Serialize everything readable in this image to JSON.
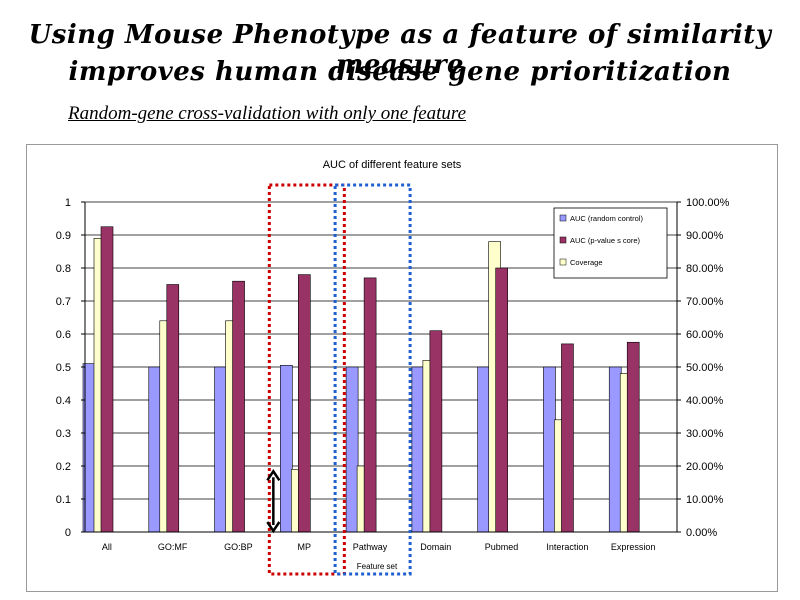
{
  "slide": {
    "title_line1": "Using Mouse Phenotype as a feature of similarity measure",
    "title_line2": "improves human disease gene prioritization",
    "subtitle": "Random-gene cross-validation with only one feature"
  },
  "colors": {
    "auc_random": "#9999ff",
    "auc_pvalue": "#993366",
    "coverage": "#ffffcc",
    "red_box": "#cc0000",
    "blue_box": "#1f5fd0"
  },
  "chart_data": {
    "type": "bar",
    "title": "AUC of different feature sets",
    "xlabel": "Feature set",
    "ylabel": "",
    "y2label": "",
    "categories": [
      "All",
      "GO:MF",
      "GO:BP",
      "MP",
      "Pathway",
      "Domain",
      "Pubmed",
      "Interaction",
      "Expression"
    ],
    "series": [
      {
        "name": "AUC (random control)",
        "axis": "left",
        "values": [
          0.51,
          0.5,
          0.5,
          0.505,
          0.5,
          0.5,
          0.5,
          0.5,
          0.5
        ]
      },
      {
        "name": "AUC (p-value s core)",
        "axis": "left",
        "values": [
          0.925,
          0.75,
          0.76,
          0.78,
          0.77,
          0.61,
          0.8,
          0.57,
          0.575
        ]
      },
      {
        "name": "Coverage",
        "axis": "right",
        "values": [
          0.89,
          0.64,
          0.64,
          0.19,
          0.2,
          0.52,
          0.88,
          0.34,
          0.48
        ]
      }
    ],
    "ylim": [
      0,
      1
    ],
    "yticks": [
      "0",
      "0.1",
      "0.2",
      "0.3",
      "0.4",
      "0.5",
      "0.6",
      "0.7",
      "0.8",
      "0.9",
      "1"
    ],
    "y2lim": [
      0,
      1
    ],
    "y2ticks": [
      "0.00%",
      "10.00%",
      "20.00%",
      "30.00%",
      "40.00%",
      "50.00%",
      "60.00%",
      "70.00%",
      "80.00%",
      "90.00%",
      "100.00%"
    ],
    "grid": true,
    "legend_position": "top-right",
    "highlights": [
      {
        "category": "MP",
        "style": "red-dotted-box"
      },
      {
        "category": "Pathway",
        "style": "blue-dotted-box"
      }
    ],
    "annotations": [
      {
        "category": "MP",
        "type": "double-arrow",
        "from": 0.0,
        "to": 0.19
      }
    ]
  }
}
